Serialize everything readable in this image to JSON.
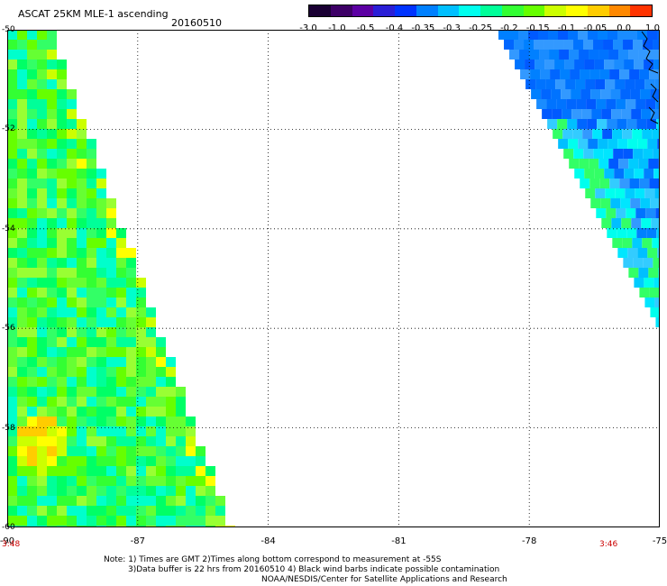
{
  "header": {
    "title": "ASCAT 25KM MLE-1 ascending",
    "date": "20160510"
  },
  "colorbar": {
    "labels": [
      "-3.0",
      "-1.0",
      "-0.5",
      "-0.4",
      "-0.35",
      "-0.3",
      "-0.25",
      "-0.2",
      "-0.15",
      "-0.1",
      "-0.05",
      "0.0",
      "1.0"
    ],
    "colors": [
      "#1a0033",
      "#3d0066",
      "#5c00a3",
      "#2a1ed6",
      "#0033ff",
      "#0080ff",
      "#00bfff",
      "#00ffee",
      "#00ff99",
      "#33ff33",
      "#66ff00",
      "#ccff00",
      "#ffff00",
      "#ffcc00",
      "#ff8800",
      "#ff3300"
    ]
  },
  "axes": {
    "lat_labels": [
      "-50",
      "-52",
      "-54",
      "-56",
      "-58",
      "-60"
    ],
    "lon_labels": [
      "-90",
      "-87",
      "-84",
      "-81",
      "-78",
      "-75"
    ]
  },
  "times": {
    "left": "3:48",
    "right": "3:46"
  },
  "notes": {
    "line1": "Note: 1) Times are GMT 2)Times along bottom correspond to measurement at -55S",
    "line2": "3)Data buffer is 22 hrs from 20160510 4) Black wind barbs indicate possible contamination",
    "line3": "NOAA/NESDIS/Center for Satellite Applications and Research"
  }
}
